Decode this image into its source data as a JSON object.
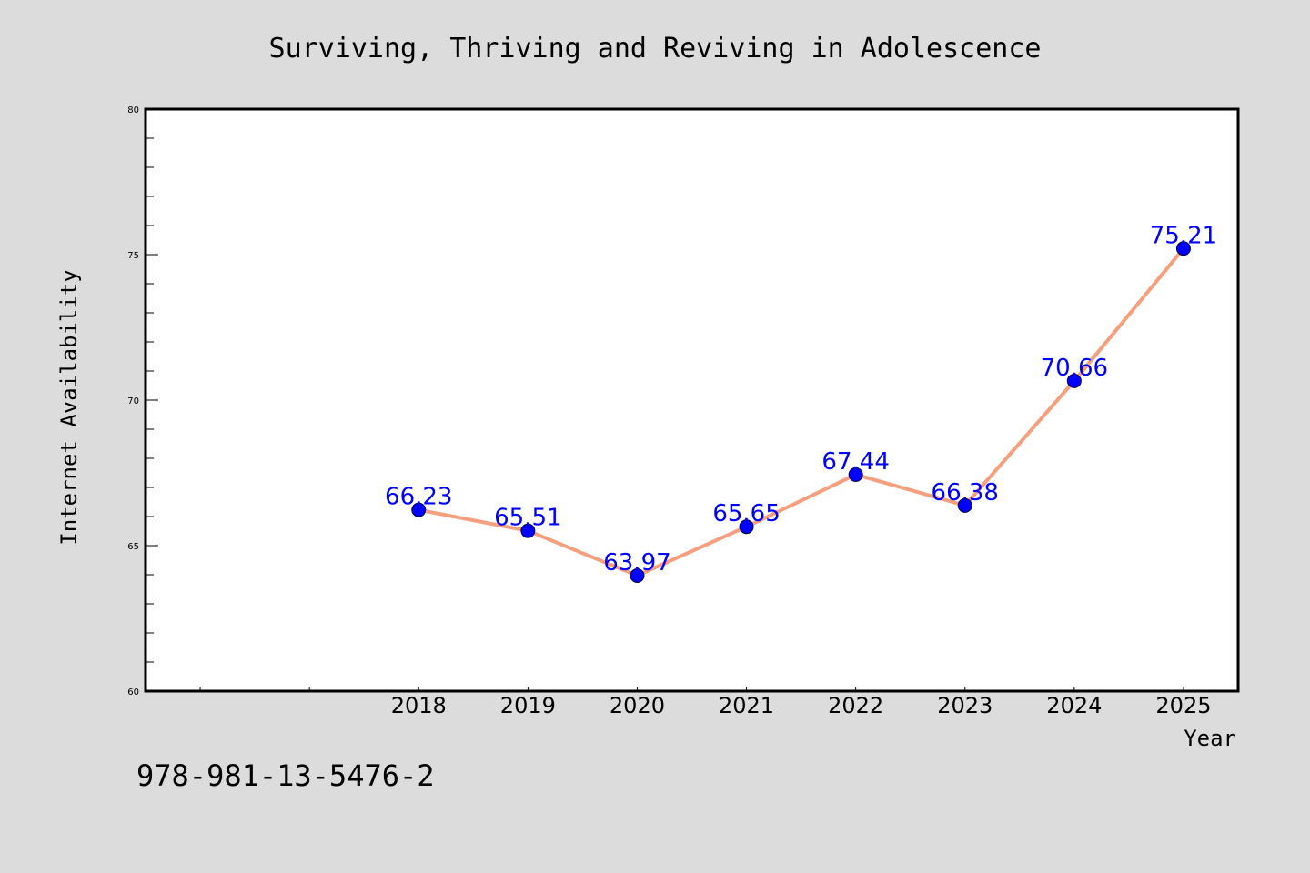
{
  "page": {
    "background": "#dcdcdc",
    "footnote": "978-981-13-5476-2"
  },
  "chart_data": {
    "type": "line",
    "title": "Surviving, Thriving and Reviving in Adolescence",
    "xlabel": "Year",
    "ylabel": "Internet Availability",
    "x": [
      2018,
      2019,
      2020,
      2021,
      2022,
      2023,
      2024,
      2025
    ],
    "xticks": [
      "2018",
      "2019",
      "2020",
      "2021",
      "2022",
      "2023",
      "2024",
      "2025"
    ],
    "xlim": [
      2015.5,
      2025.5
    ],
    "ylim": [
      60,
      80
    ],
    "yticks": [
      60,
      65,
      70,
      75,
      80
    ],
    "series": [
      {
        "values": [
          66.23,
          65.51,
          63.97,
          65.65,
          67.44,
          66.38,
          70.66,
          75.21
        ],
        "labels": [
          "66.23",
          "65.51",
          "63.97",
          "65.65",
          "67.44",
          "66.38",
          "70.66",
          "75.21"
        ],
        "line_color": "#f4a07f",
        "marker_color": "#0000ff",
        "label_color": "#0000ff"
      }
    ],
    "grid": false,
    "legend": false,
    "plot_background": "#ffffff"
  }
}
